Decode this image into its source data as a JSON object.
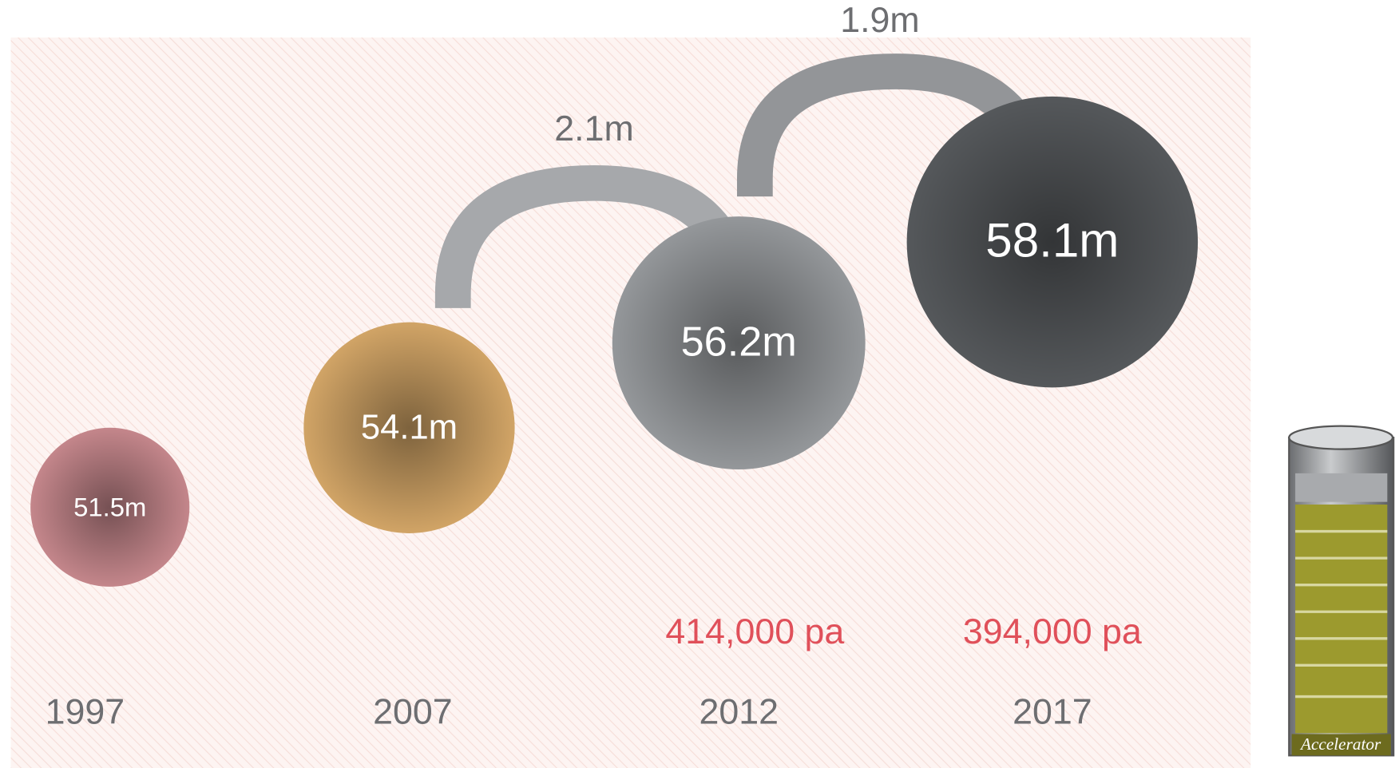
{
  "chart_data": {
    "type": "bubble",
    "categories": [
      "1997",
      "2007",
      "2012",
      "2017"
    ],
    "values": [
      51.5,
      54.1,
      56.2,
      58.1
    ],
    "value_labels": [
      "51.5m",
      "54.1m",
      "56.2m",
      "58.1m"
    ],
    "colors": [
      "#c4868b",
      "#d1a466",
      "#94979a",
      "#55585b"
    ],
    "changes": {
      "values": [
        2.1,
        1.9
      ],
      "value_labels": [
        "2.1m",
        "1.9m"
      ]
    },
    "rates": {
      "values": [
        414000,
        394000
      ],
      "value_labels": [
        "414,000 pa",
        "394,000 pa"
      ]
    },
    "icon_label": "Accelerator"
  }
}
